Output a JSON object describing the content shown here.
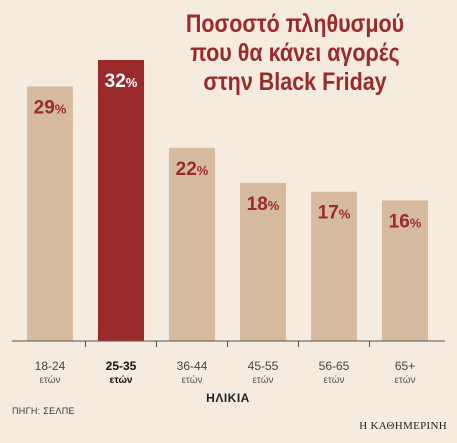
{
  "chart_data": {
    "type": "bar",
    "title_lines": [
      "Ποσοστό πληθυσμού",
      "που θα κάνει αγορές",
      "στην Black Friday"
    ],
    "categories": [
      {
        "label": "18-24",
        "unit": "ετών"
      },
      {
        "label": "25-35",
        "unit": "ετών"
      },
      {
        "label": "36-44",
        "unit": "ετών"
      },
      {
        "label": "45-55",
        "unit": "ετών"
      },
      {
        "label": "56-65",
        "unit": "ετών"
      },
      {
        "label": "65+",
        "unit": "ετών"
      }
    ],
    "values": [
      29,
      32,
      22,
      18,
      17,
      16
    ],
    "value_labels": [
      "29",
      "32",
      "22",
      "18",
      "17",
      "16"
    ],
    "value_suffix": "%",
    "highlight_index": 1,
    "xlabel": "ΗΛΙΚΙΑ",
    "ylim": [
      0,
      32
    ],
    "grid": false,
    "colors": {
      "bar": "#d7bb9f",
      "highlight": "#9b2a2a",
      "title": "#9b2a2a",
      "label": "#9b2a2a",
      "label_on_highlight": "#ffffff",
      "axis": "#555555",
      "background": "#f5ecdf"
    }
  },
  "footer": {
    "source": "ΠΗΓΗ: ΣΕΛΠΕ",
    "brand": "Η ΚΑΘΗΜΕΡΙΝΗ"
  }
}
